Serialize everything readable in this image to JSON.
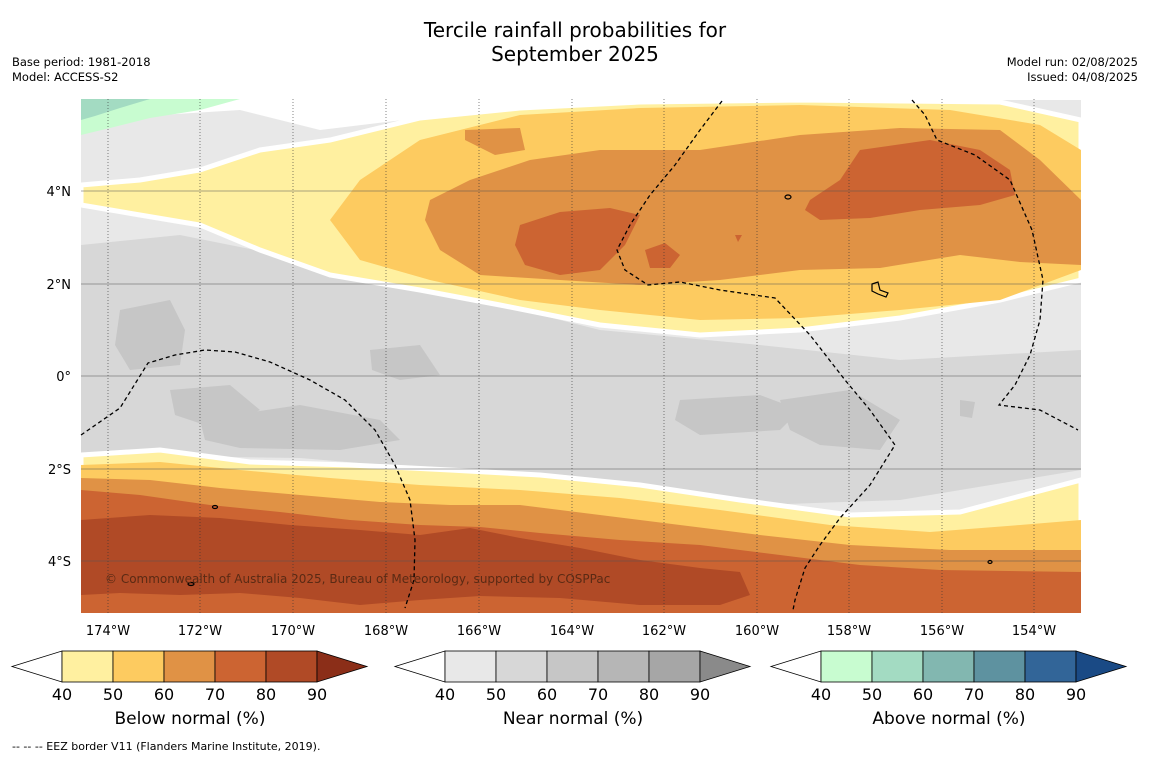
{
  "title_line1": "Tercile rainfall probabilities for",
  "title_line2": "September 2025",
  "meta_left": {
    "base_period": "Base period: 1981-2018",
    "model": "Model: ACCESS-S2"
  },
  "meta_right": {
    "model_run": "Model run: 02/08/2025",
    "issued": "Issued: 04/08/2025"
  },
  "map": {
    "lon_labels": [
      "174°W",
      "172°W",
      "170°W",
      "168°W",
      "166°W",
      "164°W",
      "162°W",
      "160°W",
      "158°W",
      "156°W",
      "154°W"
    ],
    "lat_labels": [
      "4°N",
      "2°N",
      "0°",
      "2°S",
      "4°S"
    ],
    "copyright": "© Commonwealth of Australia 2025, Bureau of Meteorology, supported by COSPPac",
    "colors": {
      "below": [
        "#fff0a0",
        "#fdcb60",
        "#e09245",
        "#cc6432",
        "#b04a26",
        "#8b2e18"
      ],
      "near": [
        "#e8e8e8",
        "#d7d7d7",
        "#c6c6c6",
        "#b6b6b6",
        "#a6a6a6",
        "#8a8a8a"
      ],
      "above": [
        "#c8fcd0",
        "#a3dbc2",
        "#82b7b0",
        "#5e92a0",
        "#326598",
        "#1a4a85"
      ]
    }
  },
  "colorbars": {
    "ticks": [
      "40",
      "50",
      "60",
      "70",
      "80",
      "90"
    ],
    "below_label": "Below normal (%)",
    "near_label": "Near normal (%)",
    "above_label": "Above normal (%)"
  },
  "footnote": "--  --  -- EEZ border V11 (Flanders Marine Institute, 2019)."
}
